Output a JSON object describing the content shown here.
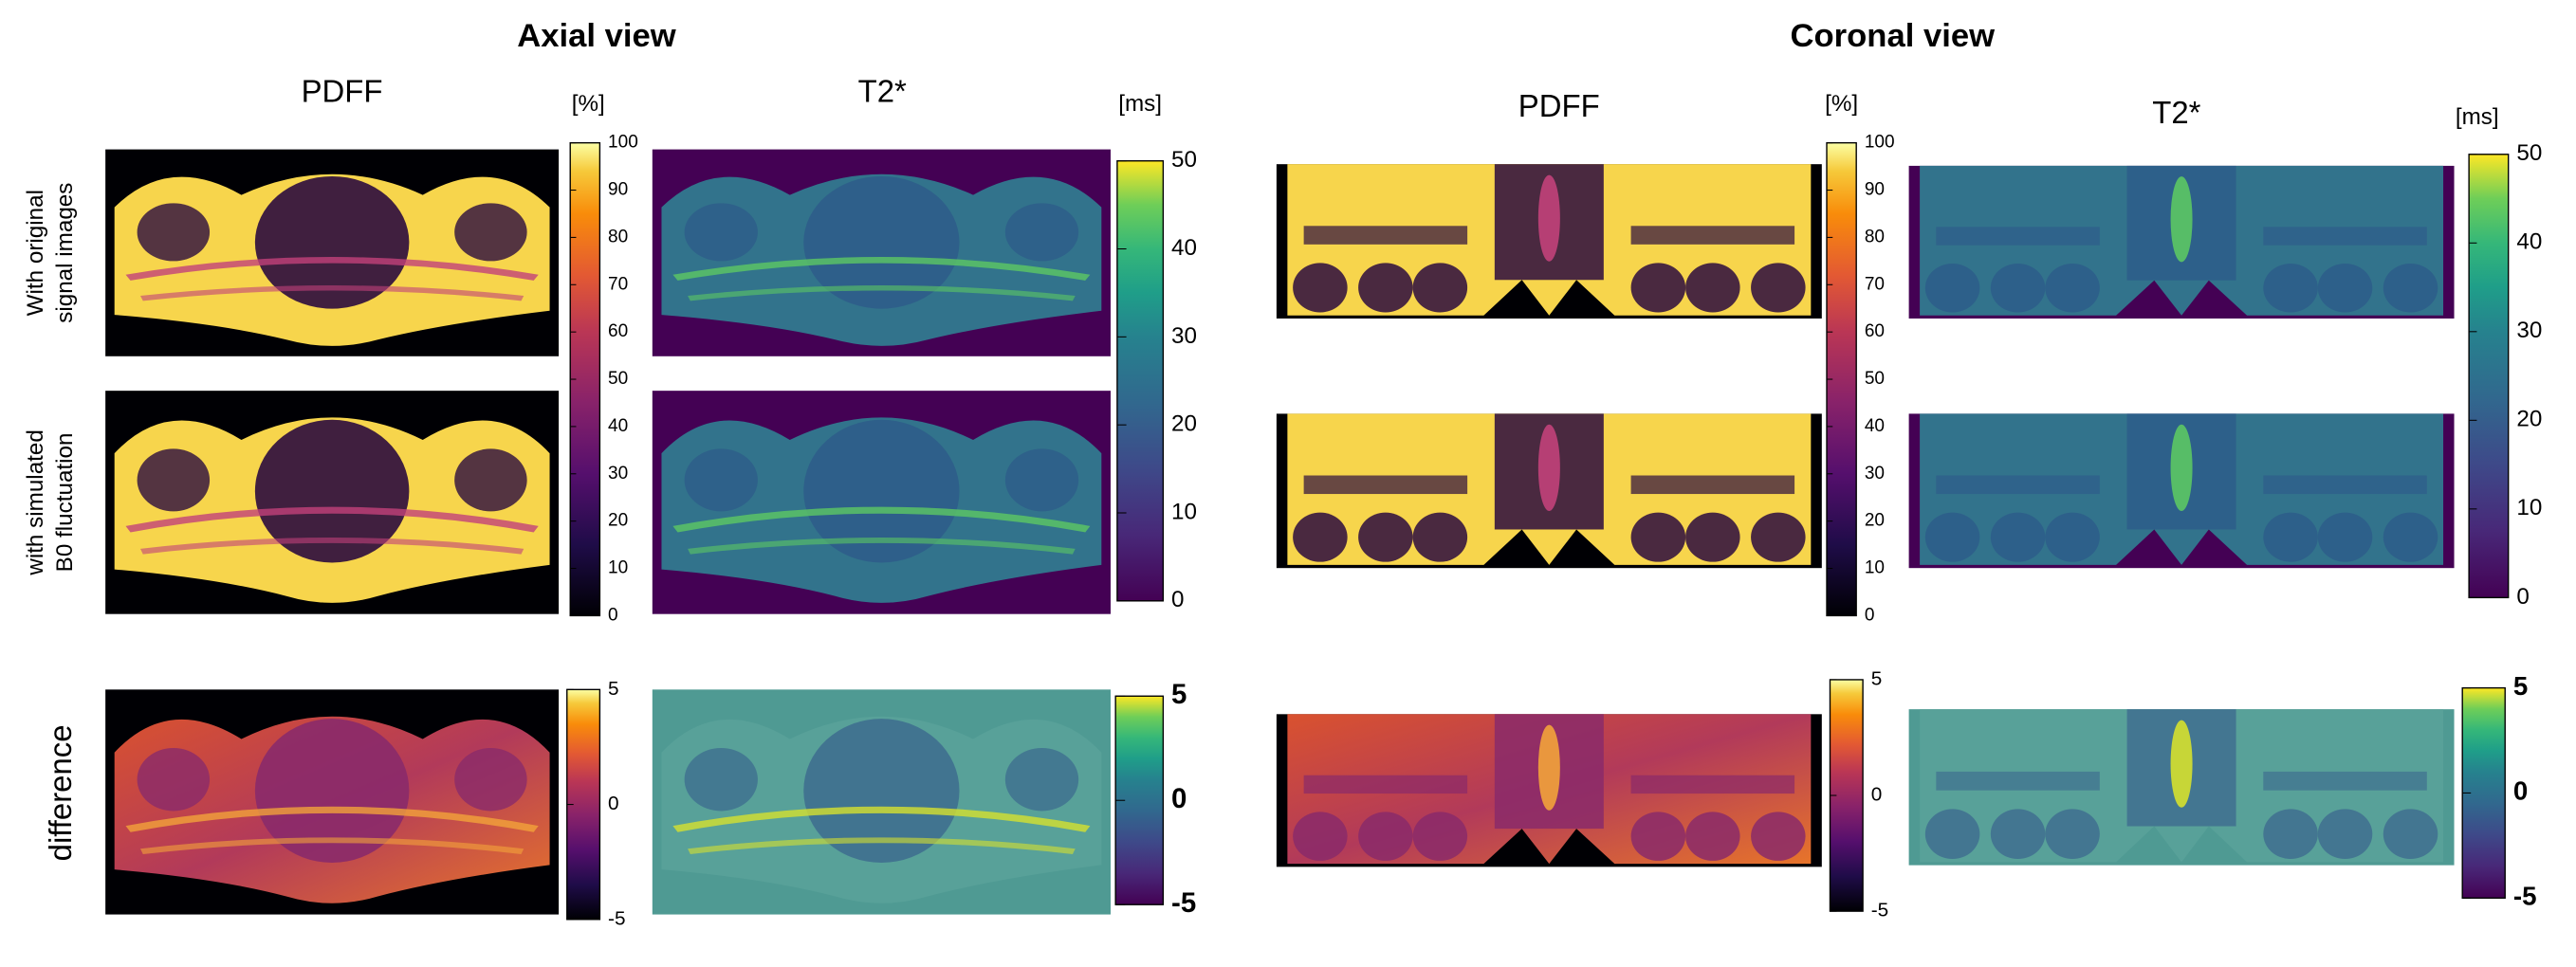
{
  "views": [
    {
      "title": "Axial view",
      "columns": [
        {
          "label": "PDFF",
          "unit": "[%]",
          "ticks": [
            0,
            10,
            20,
            30,
            40,
            50,
            60,
            70,
            80,
            90,
            100
          ],
          "difference_ticks": [
            -5,
            0,
            5
          ]
        },
        {
          "label": "T2*",
          "unit": "[ms]",
          "ticks": [
            0,
            10,
            20,
            30,
            40,
            50
          ],
          "difference_ticks": [
            -5,
            0,
            5
          ]
        }
      ]
    },
    {
      "title": "Coronal view",
      "columns": [
        {
          "label": "PDFF",
          "unit": "[%]",
          "ticks": [
            0,
            10,
            20,
            30,
            40,
            50,
            60,
            70,
            80,
            90,
            100
          ],
          "difference_ticks": [
            -5,
            0,
            5
          ]
        },
        {
          "label": "T2*",
          "unit": "[ms]",
          "ticks": [
            0,
            10,
            20,
            30,
            40,
            50
          ],
          "difference_ticks": [
            -5,
            0,
            5
          ]
        }
      ]
    }
  ],
  "row_labels": [
    [
      "With original",
      "signal images"
    ],
    [
      "with simulated",
      "B0 fluctuation"
    ],
    [
      "difference"
    ]
  ]
}
